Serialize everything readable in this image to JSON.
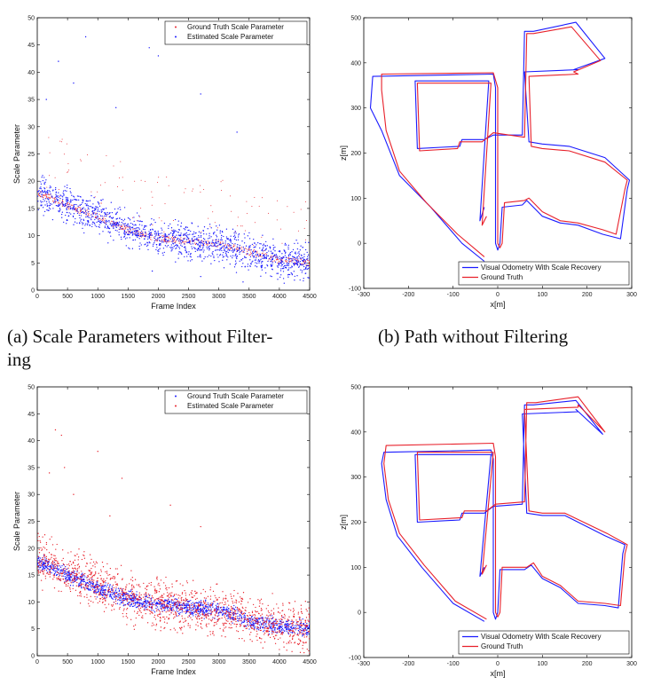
{
  "captions": {
    "a": "(a) Scale Parameters without Filter-\ning",
    "b": "(b) Path without Filtering"
  },
  "colors": {
    "ground_truth": "#e8202a",
    "estimated": "#1a1aff",
    "axis": "#000000"
  },
  "chart_data": [
    {
      "id": "scale_unfiltered",
      "type": "scatter",
      "xlabel": "Frame Index",
      "ylabel": "Scale Parameter",
      "xlim": [
        0,
        4500
      ],
      "ylim": [
        0,
        50
      ],
      "xticks": [
        0,
        500,
        1000,
        1500,
        2000,
        2500,
        3000,
        3500,
        4000,
        4500
      ],
      "yticks": [
        0,
        5,
        10,
        15,
        20,
        25,
        30,
        35,
        40,
        45,
        50
      ],
      "legend_position": "top-right",
      "series": [
        {
          "name": "Ground Truth Scale Parameter",
          "color": "#e8202a",
          "marker": "dot",
          "trend": [
            [
              0,
              18
            ],
            [
              500,
              15.5
            ],
            [
              1000,
              13.5
            ],
            [
              1500,
              11
            ],
            [
              2000,
              9.5
            ],
            [
              2500,
              9
            ],
            [
              3000,
              8.5
            ],
            [
              3500,
              7
            ],
            [
              4000,
              5.5
            ],
            [
              4500,
              5
            ]
          ]
        },
        {
          "name": "Estimated Scale Parameter",
          "color": "#1a1aff",
          "marker": "dot",
          "trend": [
            [
              0,
              18
            ],
            [
              500,
              15.5
            ],
            [
              1000,
              13.5
            ],
            [
              1500,
              11
            ],
            [
              2000,
              9.5
            ],
            [
              2500,
              9
            ],
            [
              3000,
              8.5
            ],
            [
              3500,
              7
            ],
            [
              4000,
              5.5
            ],
            [
              4500,
              5
            ]
          ],
          "spread": 2.2,
          "outliers": [
            [
              800,
              46.5
            ],
            [
              1850,
              44.5
            ],
            [
              2000,
              43
            ],
            [
              350,
              42
            ],
            [
              1300,
              33.5
            ],
            [
              600,
              38
            ],
            [
              2700,
              36
            ],
            [
              3300,
              29
            ],
            [
              150,
              35
            ],
            [
              1900,
              3.5
            ],
            [
              2700,
              2.5
            ],
            [
              3400,
              1.5
            ]
          ]
        }
      ]
    },
    {
      "id": "path_unfiltered",
      "type": "line",
      "xlabel": "x[m]",
      "ylabel": "z[m]",
      "xlim": [
        -300,
        300
      ],
      "ylim": [
        -100,
        500
      ],
      "xticks": [
        -300,
        -200,
        -100,
        0,
        100,
        200,
        300
      ],
      "yticks": [
        -100,
        0,
        100,
        200,
        300,
        400,
        500
      ],
      "legend_position": "bottom-right",
      "series": [
        {
          "name": "Visual Odometry With Scale Recovery",
          "color": "#1a1aff",
          "points": [
            [
              -30,
              -40
            ],
            [
              -80,
              0
            ],
            [
              -150,
              80
            ],
            [
              -220,
              150
            ],
            [
              -260,
              250
            ],
            [
              -285,
              300
            ],
            [
              -280,
              370
            ],
            [
              -10,
              375
            ],
            [
              -5,
              345
            ],
            [
              -5,
              0
            ],
            [
              0,
              -15
            ],
            [
              5,
              0
            ],
            [
              10,
              80
            ],
            [
              55,
              85
            ],
            [
              65,
              95
            ],
            [
              100,
              60
            ],
            [
              140,
              45
            ],
            [
              180,
              40
            ],
            [
              235,
              20
            ],
            [
              275,
              10
            ],
            [
              290,
              120
            ],
            [
              295,
              140
            ],
            [
              240,
              190
            ],
            [
              160,
              215
            ],
            [
              100,
              220
            ],
            [
              70,
              225
            ],
            [
              60,
              380
            ],
            [
              180,
              385
            ],
            [
              170,
              385
            ],
            [
              240,
              410
            ],
            [
              175,
              490
            ],
            [
              80,
              470
            ],
            [
              60,
              470
            ],
            [
              55,
              240
            ],
            [
              -10,
              240
            ],
            [
              -30,
              230
            ],
            [
              -80,
              230
            ],
            [
              -85,
              215
            ],
            [
              -180,
              210
            ],
            [
              -185,
              360
            ],
            [
              -20,
              360
            ],
            [
              -40,
              50
            ],
            [
              -30,
              80
            ]
          ]
        },
        {
          "name": "Ground Truth",
          "color": "#e8202a",
          "points": [
            [
              -30,
              -30
            ],
            [
              -90,
              20
            ],
            [
              -160,
              90
            ],
            [
              -220,
              160
            ],
            [
              -250,
              250
            ],
            [
              -260,
              340
            ],
            [
              -260,
              375
            ],
            [
              -10,
              378
            ],
            [
              0,
              345
            ],
            [
              0,
              0
            ],
            [
              5,
              -10
            ],
            [
              10,
              0
            ],
            [
              15,
              90
            ],
            [
              60,
              95
            ],
            [
              70,
              100
            ],
            [
              100,
              70
            ],
            [
              140,
              50
            ],
            [
              180,
              45
            ],
            [
              235,
              30
            ],
            [
              265,
              20
            ],
            [
              285,
              120
            ],
            [
              290,
              140
            ],
            [
              240,
              180
            ],
            [
              160,
              205
            ],
            [
              100,
              210
            ],
            [
              75,
              215
            ],
            [
              70,
              370
            ],
            [
              180,
              375
            ],
            [
              170,
              380
            ],
            [
              230,
              405
            ],
            [
              165,
              480
            ],
            [
              80,
              465
            ],
            [
              65,
              465
            ],
            [
              60,
              235
            ],
            [
              -10,
              245
            ],
            [
              -35,
              225
            ],
            [
              -85,
              225
            ],
            [
              -90,
              210
            ],
            [
              -175,
              205
            ],
            [
              -180,
              355
            ],
            [
              -15,
              355
            ],
            [
              -35,
              40
            ],
            [
              -25,
              60
            ]
          ]
        }
      ]
    },
    {
      "id": "scale_filtered",
      "type": "scatter",
      "xlabel": "Frame Index",
      "ylabel": "Scale Parameter",
      "xlim": [
        0,
        4500
      ],
      "ylim": [
        0,
        50
      ],
      "xticks": [
        0,
        500,
        1000,
        1500,
        2000,
        2500,
        3000,
        3500,
        4000,
        4500
      ],
      "yticks": [
        0,
        5,
        10,
        15,
        20,
        25,
        30,
        35,
        40,
        45,
        50
      ],
      "legend_position": "top-right",
      "series": [
        {
          "name": "Ground Truth Scale Parameter",
          "color": "#1a1aff",
          "marker": "dot",
          "trend": [
            [
              0,
              17.5
            ],
            [
              500,
              15
            ],
            [
              1000,
              12.5
            ],
            [
              1500,
              10.5
            ],
            [
              2000,
              9.5
            ],
            [
              2500,
              9
            ],
            [
              3000,
              8.5
            ],
            [
              3500,
              6.5
            ],
            [
              4000,
              5.5
            ],
            [
              4500,
              5
            ]
          ],
          "spread": 1.0
        },
        {
          "name": "Estimated Scale Parameter",
          "color": "#e8202a",
          "marker": "dot",
          "trend": [
            [
              0,
              18
            ],
            [
              500,
              15.5
            ],
            [
              1000,
              13.5
            ],
            [
              1500,
              11
            ],
            [
              2000,
              9.5
            ],
            [
              2500,
              9
            ],
            [
              3000,
              8.5
            ],
            [
              3500,
              7
            ],
            [
              4000,
              5.5
            ],
            [
              4500,
              5
            ]
          ],
          "spread": 3.0,
          "outliers": [
            [
              300,
              42
            ],
            [
              400,
              41
            ],
            [
              450,
              35
            ],
            [
              600,
              30
            ],
            [
              1000,
              38
            ],
            [
              1400,
              33
            ],
            [
              2200,
              28
            ],
            [
              2700,
              24
            ],
            [
              1200,
              26
            ],
            [
              200,
              34
            ]
          ]
        }
      ]
    },
    {
      "id": "path_filtered",
      "type": "line",
      "xlabel": "x[m]",
      "ylabel": "z[m]",
      "xlim": [
        -300,
        300
      ],
      "ylim": [
        -100,
        500
      ],
      "xticks": [
        -300,
        -200,
        -100,
        0,
        100,
        200,
        300
      ],
      "yticks": [
        -100,
        0,
        100,
        200,
        300,
        400,
        500
      ],
      "legend_position": "bottom-right",
      "series": [
        {
          "name": "Visual Odometry With Scale Recovery",
          "color": "#1a1aff",
          "points": [
            [
              -30,
              -20
            ],
            [
              -100,
              20
            ],
            [
              -170,
              100
            ],
            [
              -225,
              170
            ],
            [
              -250,
              250
            ],
            [
              -260,
              330
            ],
            [
              -255,
              355
            ],
            [
              -15,
              360
            ],
            [
              -10,
              340
            ],
            [
              -10,
              0
            ],
            [
              -5,
              -15
            ],
            [
              0,
              0
            ],
            [
              5,
              95
            ],
            [
              60,
              95
            ],
            [
              75,
              105
            ],
            [
              100,
              75
            ],
            [
              140,
              55
            ],
            [
              180,
              20
            ],
            [
              240,
              15
            ],
            [
              270,
              10
            ],
            [
              280,
              130
            ],
            [
              285,
              150
            ],
            [
              240,
              170
            ],
            [
              150,
              215
            ],
            [
              100,
              215
            ],
            [
              65,
              220
            ],
            [
              55,
              440
            ],
            [
              180,
              445
            ],
            [
              175,
              450
            ],
            [
              235,
              395
            ],
            [
              175,
              470
            ],
            [
              80,
              460
            ],
            [
              60,
              460
            ],
            [
              55,
              240
            ],
            [
              -10,
              235
            ],
            [
              -30,
              220
            ],
            [
              -80,
              220
            ],
            [
              -85,
              205
            ],
            [
              -180,
              200
            ],
            [
              -185,
              350
            ],
            [
              -15,
              350
            ],
            [
              -40,
              80
            ],
            [
              -30,
              100
            ]
          ]
        },
        {
          "name": "Ground Truth",
          "color": "#e8202a",
          "points": [
            [
              -25,
              -15
            ],
            [
              -95,
              25
            ],
            [
              -165,
              105
            ],
            [
              -220,
              175
            ],
            [
              -245,
              250
            ],
            [
              -255,
              330
            ],
            [
              -250,
              370
            ],
            [
              -10,
              375
            ],
            [
              -5,
              345
            ],
            [
              -5,
              0
            ],
            [
              0,
              -10
            ],
            [
              5,
              0
            ],
            [
              10,
              100
            ],
            [
              65,
              100
            ],
            [
              80,
              110
            ],
            [
              100,
              80
            ],
            [
              140,
              60
            ],
            [
              180,
              25
            ],
            [
              240,
              20
            ],
            [
              275,
              15
            ],
            [
              285,
              130
            ],
            [
              290,
              150
            ],
            [
              245,
              175
            ],
            [
              150,
              220
            ],
            [
              100,
              220
            ],
            [
              70,
              225
            ],
            [
              60,
              450
            ],
            [
              180,
              455
            ],
            [
              180,
              460
            ],
            [
              240,
              400
            ],
            [
              180,
              478
            ],
            [
              85,
              465
            ],
            [
              65,
              465
            ],
            [
              60,
              245
            ],
            [
              -5,
              240
            ],
            [
              -25,
              225
            ],
            [
              -75,
              225
            ],
            [
              -80,
              210
            ],
            [
              -175,
              205
            ],
            [
              -180,
              355
            ],
            [
              -10,
              355
            ],
            [
              -35,
              85
            ],
            [
              -25,
              105
            ]
          ]
        }
      ]
    }
  ]
}
